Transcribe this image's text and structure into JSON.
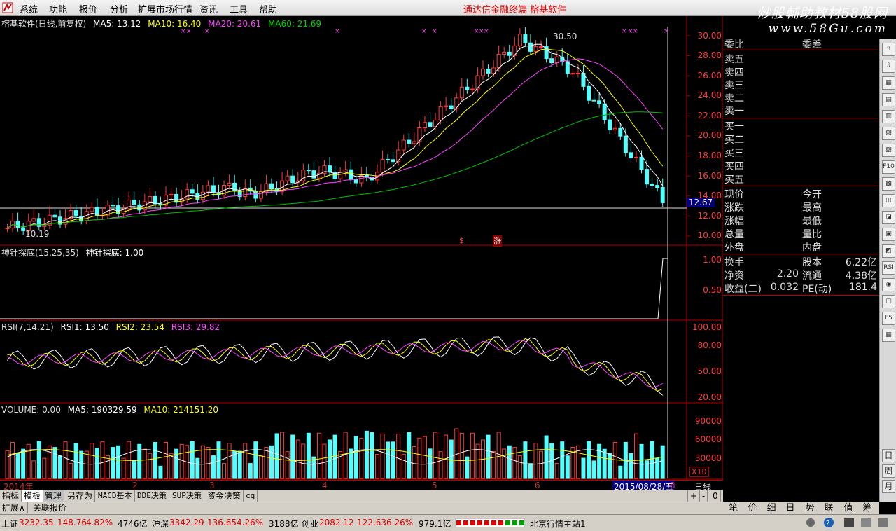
{
  "menu": {
    "items": [
      "系统",
      "功能",
      "报价",
      "分析",
      "扩展市场行情",
      "资讯",
      "工具",
      "帮助"
    ],
    "window_title": "通达信金融终端    榕基软件"
  },
  "watermark": {
    "line1": "炒股輔助教材58股网",
    "line2": "www.58Gu.com"
  },
  "price_pane": {
    "title": "榕基软件(日线,前复权)",
    "ma5": "MA5: 13.12",
    "ma10": "MA10: 16.40",
    "ma20": "MA20: 20.61",
    "ma60": "MA60: 21.69",
    "high_label": "30.50",
    "low_label": "10.19",
    "current_label": "12.67",
    "marker1": "$",
    "marker2": "涨",
    "yaxis": [
      "30.00",
      "28.00",
      "26.00",
      "24.00",
      "22.00",
      "20.00",
      "18.00",
      "16.00",
      "14.00",
      "12.00",
      "10.00"
    ]
  },
  "indicator_pane": {
    "title": "神针探底(15,25,35)",
    "value": "神针探底: 1.00",
    "yaxis": [
      "1.00",
      "0.50"
    ]
  },
  "rsi_pane": {
    "title": "RSI(7,14,21)",
    "rsi1": "RSI1: 13.50",
    "rsi2": "RSI2: 23.54",
    "rsi3": "RSI3: 29.82",
    "yaxis": [
      "100.00",
      "80.00",
      "50.00",
      "20.00"
    ]
  },
  "volume_pane": {
    "title": "VOLUME: 0.00",
    "ma5": "MA5: 190329.59",
    "ma10": "MA10: 214151.20",
    "yaxis": [
      "90000",
      "60000",
      "30000"
    ],
    "unit": "X10"
  },
  "date_axis": {
    "labels": [
      "2014年",
      "2",
      "3",
      "4",
      "5",
      "6",
      "8"
    ],
    "cursor_date": "2015/08/28/五",
    "period": "日线"
  },
  "info_panel": {
    "header_left": "委比",
    "header_right": "委差",
    "asks": [
      "卖五",
      "卖四",
      "卖三",
      "卖二",
      "卖一"
    ],
    "bids": [
      "买一",
      "买二",
      "买三",
      "买四",
      "买五"
    ],
    "quote_left": [
      "现价",
      "涨跌",
      "涨幅",
      "总量",
      "外盘"
    ],
    "quote_right": [
      "今开",
      "最高",
      "最低",
      "量比",
      "内盘"
    ],
    "stats": [
      {
        "l1": "换手",
        "v1": "",
        "l2": "股本",
        "v2": "6.22亿"
      },
      {
        "l1": "净资",
        "v1": "2.20",
        "l2": "流通",
        "v2": "4.38亿"
      },
      {
        "l1": "收益(二)",
        "v1": "0.032",
        "l2": "PE(动)",
        "v2": "181.4"
      }
    ]
  },
  "tabs_row1": [
    "指标",
    "模板",
    "管理",
    "另存为",
    "MACD基本",
    "DDE决策",
    "SUP决策",
    "资金决策",
    "cq"
  ],
  "tabs_row1_controls": [
    "+",
    "-",
    "0"
  ],
  "tabs_row2": [
    "扩展∧",
    "关联报价"
  ],
  "right_tabs": [
    "笔",
    "价",
    "细",
    "日",
    "势",
    "联",
    "值",
    "筹"
  ],
  "right_toolbar": [
    "日",
    "周",
    "月"
  ],
  "status": {
    "sh_label": "上证",
    "sh_value": "3232.35",
    "sh_change": "148.76",
    "sh_pct": "4.82%",
    "sh_amount": "4746亿",
    "sz_label": "沪深",
    "sz_value": "3342.29",
    "sz_change": "136.65",
    "sz_pct": "4.26%",
    "sz_amount": "3188亿",
    "cy_label": "创业",
    "cy_value": "2082.12",
    "cy_change": "122.63",
    "cy_pct": "6.26%",
    "cy_amount": "979.1亿",
    "server": "北京行情主站1"
  },
  "colors": {
    "up": "#ff3a3a",
    "down": "#54ffff",
    "ma5": "#ffffff",
    "ma10": "#ffff00",
    "ma20": "#ff44ff",
    "ma60": "#00c000",
    "grid": "#b00000"
  }
}
